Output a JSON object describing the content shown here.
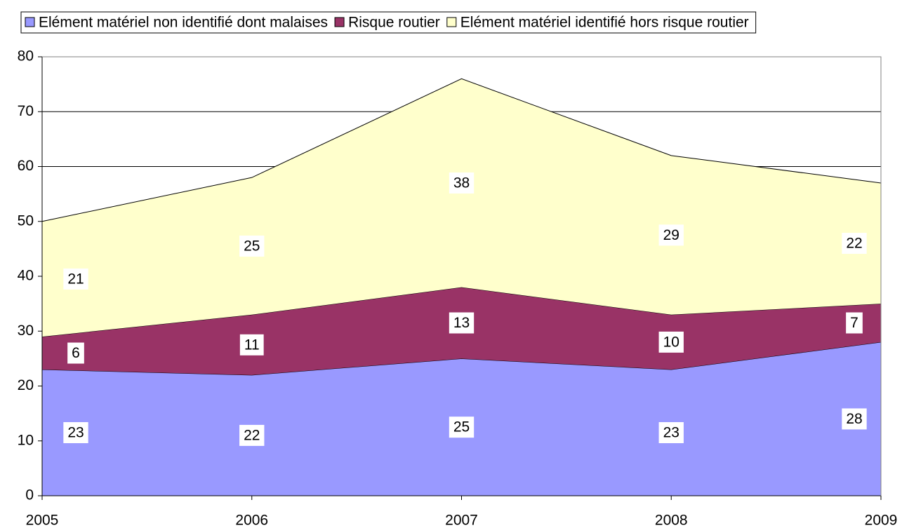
{
  "chart_data": {
    "type": "stacked_area",
    "categories": [
      "2005",
      "2006",
      "2007",
      "2008",
      "2009"
    ],
    "series": [
      {
        "name": "Elément matériel non identifié dont malaises",
        "color": "#9999ff",
        "values": [
          23,
          22,
          25,
          23,
          28
        ]
      },
      {
        "name": "Risque routier",
        "color": "#993366",
        "values": [
          6,
          11,
          13,
          10,
          7
        ]
      },
      {
        "name": "Elément matériel identifié hors risque routier",
        "color": "#ffffcc",
        "values": [
          21,
          25,
          38,
          29,
          22
        ]
      }
    ],
    "ylim": [
      0,
      80
    ],
    "yticks": [
      0,
      10,
      20,
      30,
      40,
      50,
      60,
      70,
      80
    ],
    "grid": true,
    "legend": "top"
  }
}
